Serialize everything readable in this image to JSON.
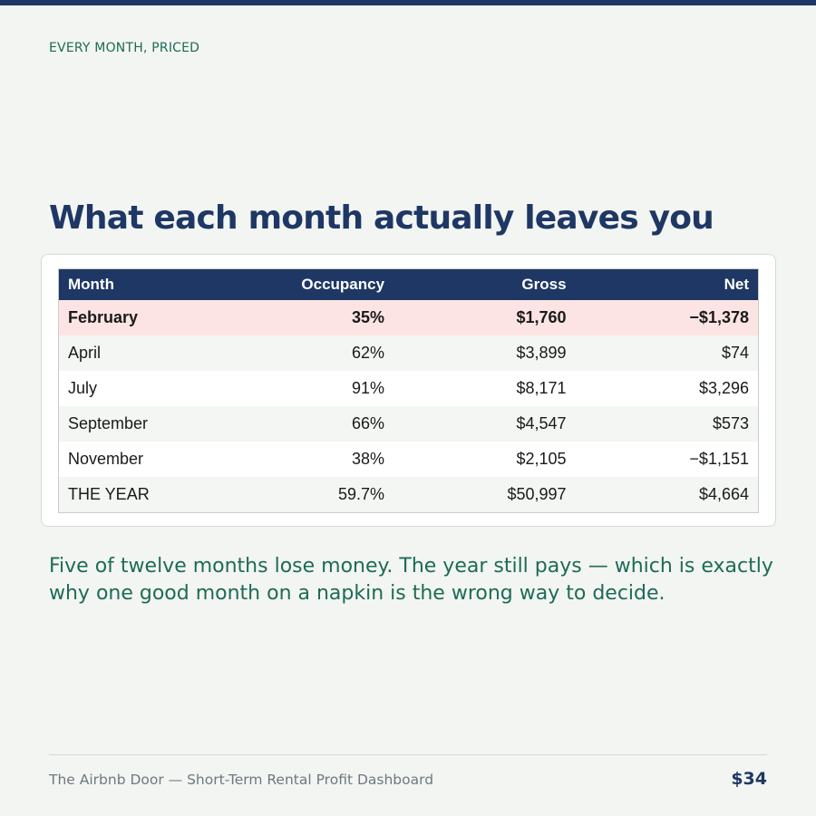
{
  "eyebrow": "EVERY MONTH, PRICED",
  "headline": "What each month actually leaves you",
  "table": {
    "headers": {
      "month": "Month",
      "occupancy": "Occupancy",
      "gross": "Gross",
      "net": "Net"
    },
    "rows": [
      {
        "month": "February",
        "occupancy": "35%",
        "gross": "$1,760",
        "net": "−$1,378",
        "highlight": true
      },
      {
        "month": "April",
        "occupancy": "62%",
        "gross": "$3,899",
        "net": "$74"
      },
      {
        "month": "July",
        "occupancy": "91%",
        "gross": "$8,171",
        "net": "$3,296"
      },
      {
        "month": "September",
        "occupancy": "66%",
        "gross": "$4,547",
        "net": "$573"
      },
      {
        "month": "November",
        "occupancy": "38%",
        "gross": "$2,105",
        "net": "−$1,151"
      },
      {
        "month": "THE YEAR",
        "occupancy": "59.7%",
        "gross": "$50,997",
        "net": "$4,664"
      }
    ]
  },
  "takeaway": "Five of twelve months lose money. The year still pays — which is exactly why one good month on a napkin is the wrong way to decide.",
  "footer": {
    "source": "The Airbnb Door — Short-Term Rental Profit Dashboard",
    "price": "$34"
  },
  "colors": {
    "navy": "#1e3764",
    "green": "#1d6b57",
    "highlight_row": "#fde4e4",
    "background": "#f3f5f2"
  }
}
